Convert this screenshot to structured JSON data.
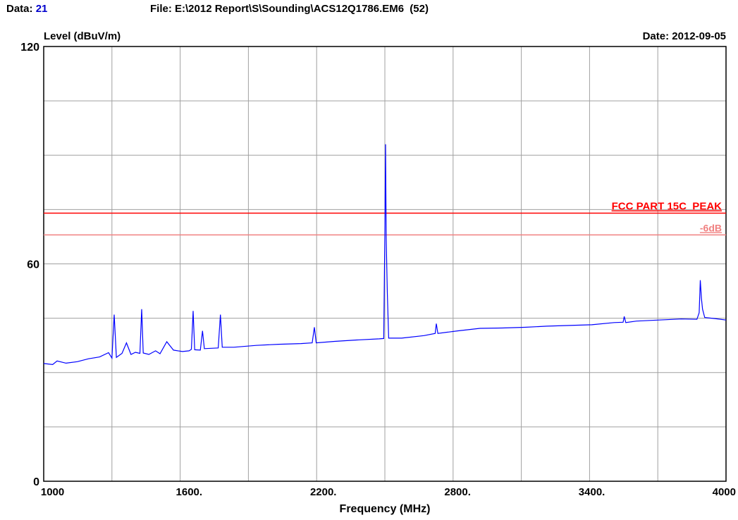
{
  "header": {
    "data_label": "Data:",
    "data_value": "21",
    "file_label": "File:",
    "file_path": "E:\\2012 Report\\S\\Sounding\\ACS12Q1786.EM6",
    "file_index": "(52)",
    "date_label": "Date:",
    "date_value": "2012-09-05"
  },
  "chart_data": {
    "type": "line",
    "title": "",
    "ylabel": "Level (dBuV/m)",
    "xlabel": "Frequency (MHz)",
    "xlim": [
      950,
      4000
    ],
    "ylim": [
      0,
      120
    ],
    "grid": true,
    "x_ticks": [
      1000,
      1600,
      2200,
      2800,
      3400,
      4000
    ],
    "x_tick_labels": [
      "1000",
      "1600.",
      "2200.",
      "2800.",
      "3400.",
      "4000"
    ],
    "y_ticks": [
      0,
      60,
      120
    ],
    "y_tick_labels": [
      "0",
      "60",
      "120"
    ],
    "limit_lines": [
      {
        "name": "FCC PART 15C  PEAK",
        "value": 74,
        "color": "#ff0000"
      },
      {
        "name": "-6dB",
        "value": 68,
        "color": "#f08080"
      }
    ],
    "series": [
      {
        "color": "#0000ff",
        "points": [
          [
            950,
            32.5
          ],
          [
            990,
            32.2
          ],
          [
            1010,
            33.2
          ],
          [
            1050,
            32.6
          ],
          [
            1100,
            33.0
          ],
          [
            1150,
            33.8
          ],
          [
            1200,
            34.3
          ],
          [
            1240,
            35.5
          ],
          [
            1255,
            34.0
          ],
          [
            1265,
            46.0
          ],
          [
            1275,
            34.2
          ],
          [
            1300,
            35.3
          ],
          [
            1320,
            38.2
          ],
          [
            1340,
            35.0
          ],
          [
            1360,
            35.6
          ],
          [
            1380,
            35.3
          ],
          [
            1388,
            47.5
          ],
          [
            1395,
            35.4
          ],
          [
            1420,
            35.0
          ],
          [
            1450,
            36.0
          ],
          [
            1470,
            35.2
          ],
          [
            1500,
            38.5
          ],
          [
            1530,
            36.2
          ],
          [
            1570,
            35.8
          ],
          [
            1600,
            36.0
          ],
          [
            1610,
            36.4
          ],
          [
            1618,
            47.0
          ],
          [
            1625,
            36.3
          ],
          [
            1650,
            36.2
          ],
          [
            1660,
            41.5
          ],
          [
            1668,
            36.6
          ],
          [
            1700,
            36.7
          ],
          [
            1730,
            36.8
          ],
          [
            1740,
            46.0
          ],
          [
            1748,
            37.0
          ],
          [
            1800,
            37.0
          ],
          [
            1900,
            37.5
          ],
          [
            2000,
            37.8
          ],
          [
            2100,
            38.0
          ],
          [
            2150,
            38.2
          ],
          [
            2160,
            42.5
          ],
          [
            2168,
            38.2
          ],
          [
            2250,
            38.6
          ],
          [
            2350,
            39.0
          ],
          [
            2450,
            39.3
          ],
          [
            2470,
            39.4
          ],
          [
            2475,
            68.5
          ],
          [
            2478,
            93.0
          ],
          [
            2481,
            67.0
          ],
          [
            2486,
            52.0
          ],
          [
            2492,
            39.5
          ],
          [
            2550,
            39.5
          ],
          [
            2650,
            40.2
          ],
          [
            2700,
            40.8
          ],
          [
            2705,
            43.5
          ],
          [
            2712,
            40.8
          ],
          [
            2800,
            41.5
          ],
          [
            2900,
            42.2
          ],
          [
            3000,
            42.3
          ],
          [
            3100,
            42.5
          ],
          [
            3200,
            42.8
          ],
          [
            3300,
            43.0
          ],
          [
            3400,
            43.2
          ],
          [
            3500,
            43.8
          ],
          [
            3540,
            43.9
          ],
          [
            3545,
            45.5
          ],
          [
            3552,
            43.8
          ],
          [
            3600,
            44.2
          ],
          [
            3700,
            44.5
          ],
          [
            3800,
            44.8
          ],
          [
            3870,
            44.7
          ],
          [
            3880,
            46.5
          ],
          [
            3885,
            55.5
          ],
          [
            3890,
            50.5
          ],
          [
            3895,
            47.5
          ],
          [
            3905,
            45.2
          ],
          [
            3950,
            44.9
          ],
          [
            4000,
            44.5
          ]
        ]
      }
    ]
  }
}
